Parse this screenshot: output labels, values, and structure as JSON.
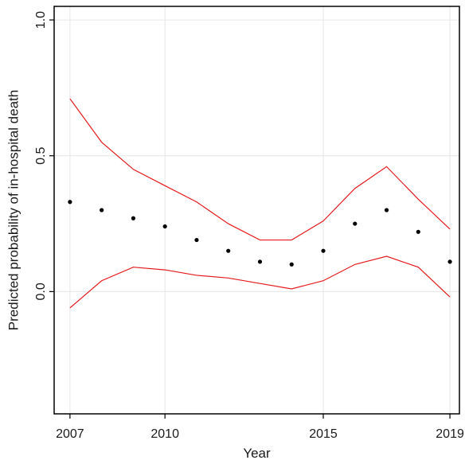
{
  "chart_data": {
    "type": "scatter",
    "xlabel": "Year",
    "ylabel": "Predicted probability of in-hospital death",
    "xlim": [
      2006.5,
      2019.3
    ],
    "ylim": [
      -0.45,
      1.05
    ],
    "grid": true,
    "x_ticks": [
      2007,
      2010,
      2015,
      2019
    ],
    "y_ticks": [
      0.0,
      0.5,
      1.0
    ],
    "x_tick_labels": [
      "2007",
      "2010",
      "2015",
      "2019"
    ],
    "y_tick_labels": [
      "0.0",
      "0.5",
      "1.0"
    ],
    "x": [
      2007,
      2008,
      2009,
      2010,
      2011,
      2012,
      2013,
      2014,
      2015,
      2016,
      2017,
      2018,
      2019
    ],
    "series": [
      {
        "role": "point-estimate",
        "kind": "scatter",
        "color": "#000000",
        "values": [
          0.33,
          0.3,
          0.27,
          0.24,
          0.19,
          0.15,
          0.11,
          0.1,
          0.15,
          0.25,
          0.3,
          0.22,
          0.11
        ]
      },
      {
        "role": "upper-bound",
        "kind": "line",
        "color": "#e41a1c",
        "values": [
          0.71,
          0.55,
          0.45,
          0.39,
          0.33,
          0.25,
          0.19,
          0.19,
          0.26,
          0.38,
          0.46,
          0.34,
          0.23
        ]
      },
      {
        "role": "lower-bound",
        "kind": "line",
        "color": "#e41a1c",
        "values": [
          -0.06,
          0.04,
          0.09,
          0.08,
          0.06,
          0.05,
          0.03,
          0.01,
          0.04,
          0.1,
          0.13,
          0.09,
          -0.02
        ]
      }
    ],
    "colors": {
      "grid": "#e6e6e6",
      "axis": "#000000",
      "interval": "#e41a1c",
      "points": "#000000"
    }
  }
}
